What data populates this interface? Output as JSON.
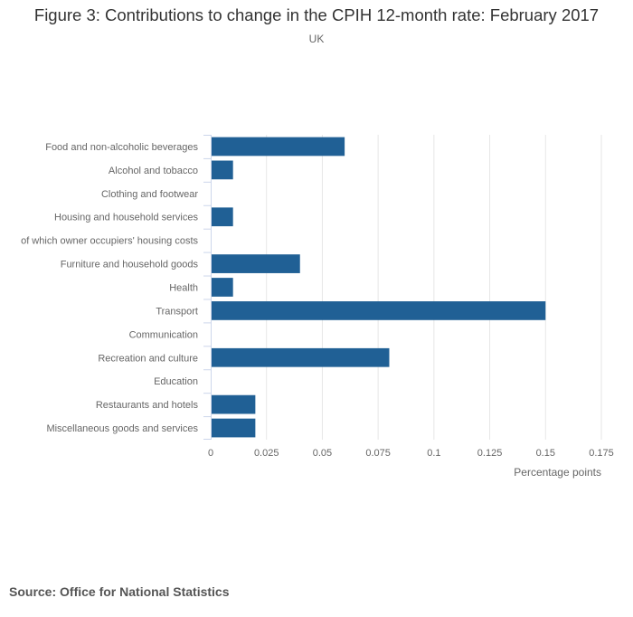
{
  "title": "Figure 3: Contributions to change in the CPIH 12-month rate: February 2017",
  "subtitle": "UK",
  "source": "Source: Office for National Statistics",
  "colors": {
    "bar": "#206095",
    "grid": "#e6e6e6",
    "axis_line": "#ccd6eb",
    "label": "#666666"
  },
  "chart_data": {
    "type": "bar",
    "orientation": "horizontal",
    "title": "Figure 3: Contributions to change in the CPIH 12-month rate: February 2017",
    "subtitle": "UK",
    "xlabel": "Percentage points",
    "ylabel": "",
    "xlim": [
      0,
      0.175
    ],
    "xticks": [
      0,
      0.025,
      0.05,
      0.075,
      0.1,
      0.125,
      0.15,
      0.175
    ],
    "xtick_labels": [
      "0",
      "0.025",
      "0.05",
      "0.075",
      "0.1",
      "0.125",
      "0.15",
      "0.175"
    ],
    "grid": true,
    "legend": "none",
    "categories": [
      "Food and non-alcoholic beverages",
      "Alcohol and tobacco",
      "Clothing and footwear",
      "Housing and household services",
      "of which owner occupiers' housing costs",
      "Furniture and household goods",
      "Health",
      "Transport",
      "Communication",
      "Recreation and culture",
      "Education",
      "Restaurants and hotels",
      "Miscellaneous goods and services"
    ],
    "values": [
      0.06,
      0.01,
      0,
      0.01,
      0,
      0.04,
      0.01,
      0.15,
      0,
      0.08,
      0,
      0.02,
      0.02
    ]
  }
}
